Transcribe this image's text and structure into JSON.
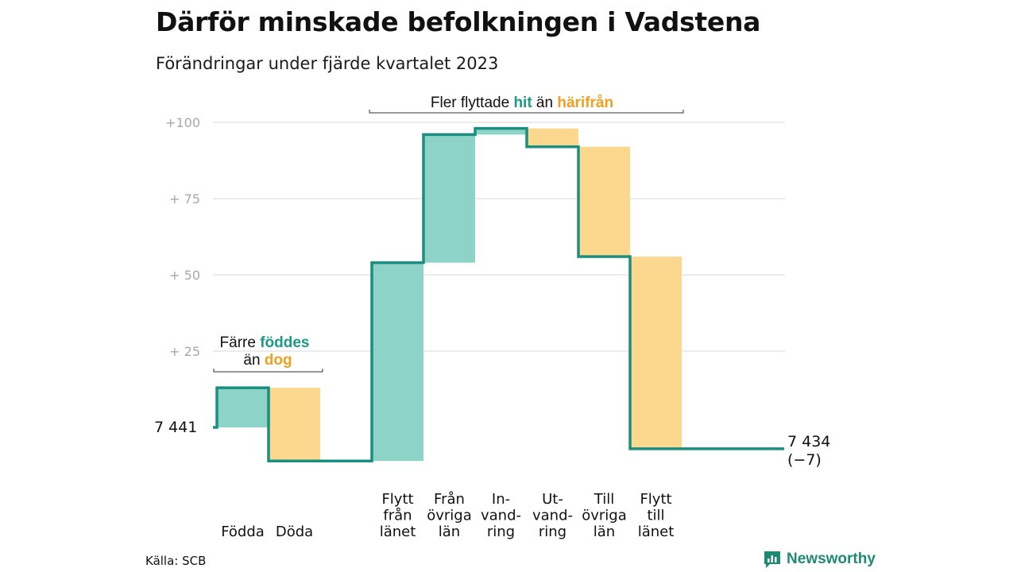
{
  "title": "Därför minskade befolkningen i Vadstena",
  "subtitle": "Förändringar under fjärde kvartalet 2023",
  "source": "Källa: SCB",
  "brand": "Newsworthy",
  "colors": {
    "positive_fill": "#8dd3c8",
    "negative_fill": "#fcd88e",
    "line": "#1b8f7f",
    "highlight_hit": "#1b9a86",
    "highlight_away": "#f29e1f",
    "grid": "#d9d9d9",
    "tick": "#a8a8a8"
  },
  "annotations": {
    "births": {
      "line1_prefix": "Färre ",
      "line1_highlight": "föddes",
      "line2_prefix": "än ",
      "line2_highlight": "dog"
    },
    "moves": {
      "prefix": "Fler flyttade ",
      "highlight1": "hit",
      "middle": " än ",
      "highlight2": "härifrån"
    }
  },
  "chart_data": {
    "type": "waterfall",
    "start_label": "7 441",
    "end_label_line1": "7 434",
    "end_label_line2": "(−7)",
    "y_ticks": [
      {
        "value": 25,
        "label": "+  25"
      },
      {
        "value": 50,
        "label": "+  50"
      },
      {
        "value": 75,
        "label": "+  75"
      },
      {
        "value": 100,
        "label": "+100"
      }
    ],
    "ylim": [
      -15,
      105
    ],
    "steps": [
      {
        "label_lines": [
          "Födda"
        ],
        "change": 13,
        "direction": "in"
      },
      {
        "label_lines": [
          "Döda"
        ],
        "change": -24,
        "direction": "out"
      },
      {
        "label_lines": [
          "Flytt",
          "från",
          "länet"
        ],
        "change": 65,
        "direction": "in"
      },
      {
        "label_lines": [
          "Från",
          "övriga",
          "län"
        ],
        "change": 42,
        "direction": "in"
      },
      {
        "label_lines": [
          "In-",
          "vand-",
          "ring"
        ],
        "change": 2,
        "direction": "in"
      },
      {
        "label_lines": [
          "Ut-",
          "vand-",
          "ring"
        ],
        "change": -6,
        "direction": "out"
      },
      {
        "label_lines": [
          "Till",
          "övriga",
          "län"
        ],
        "change": -36,
        "direction": "out"
      },
      {
        "label_lines": [
          "Flytt",
          "till",
          "länet"
        ],
        "change": -63,
        "direction": "out"
      }
    ],
    "cumulative": [
      0,
      13,
      -11,
      54,
      96,
      98,
      92,
      56,
      -7
    ],
    "net_change": -7
  }
}
